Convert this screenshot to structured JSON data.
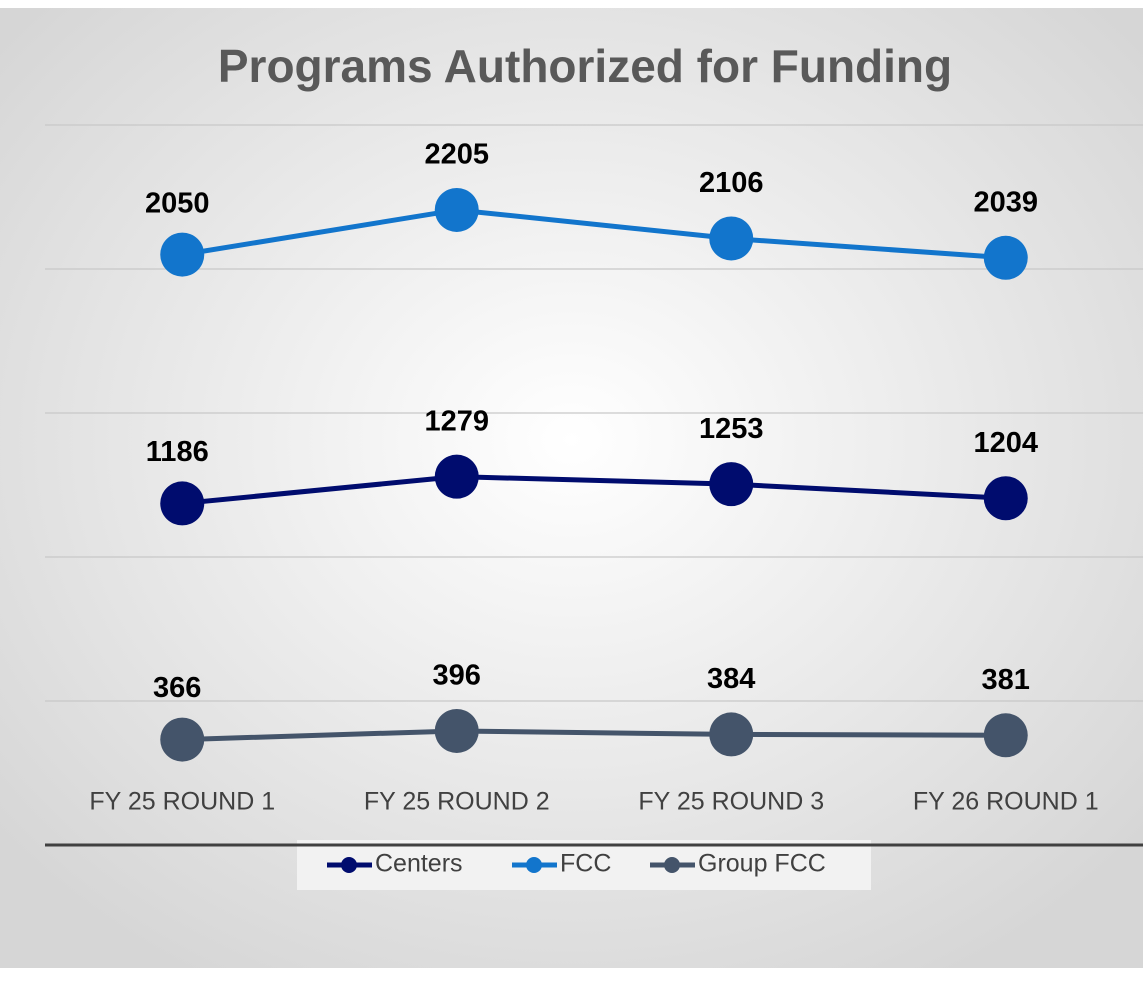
{
  "chart_data": {
    "type": "line",
    "title": "Programs Authorized for Funding",
    "categories": [
      "FY 25 ROUND 1",
      "FY 25 ROUND 2",
      "FY 25 ROUND 3",
      "FY 26 ROUND 1"
    ],
    "series": [
      {
        "name": "Centers",
        "color": "#000c6e",
        "values": [
          1186,
          1279,
          1253,
          1204
        ]
      },
      {
        "name": "FCC",
        "color": "#1275cc",
        "values": [
          2050,
          2205,
          2106,
          2039
        ]
      },
      {
        "name": "Group FCC",
        "color": "#44546a",
        "values": [
          366,
          396,
          384,
          381
        ]
      }
    ],
    "ylim": [
      0,
      2500
    ],
    "yticks": [
      0,
      500,
      1000,
      1500,
      2000,
      2500
    ],
    "grid": true,
    "legend": "bottom"
  }
}
